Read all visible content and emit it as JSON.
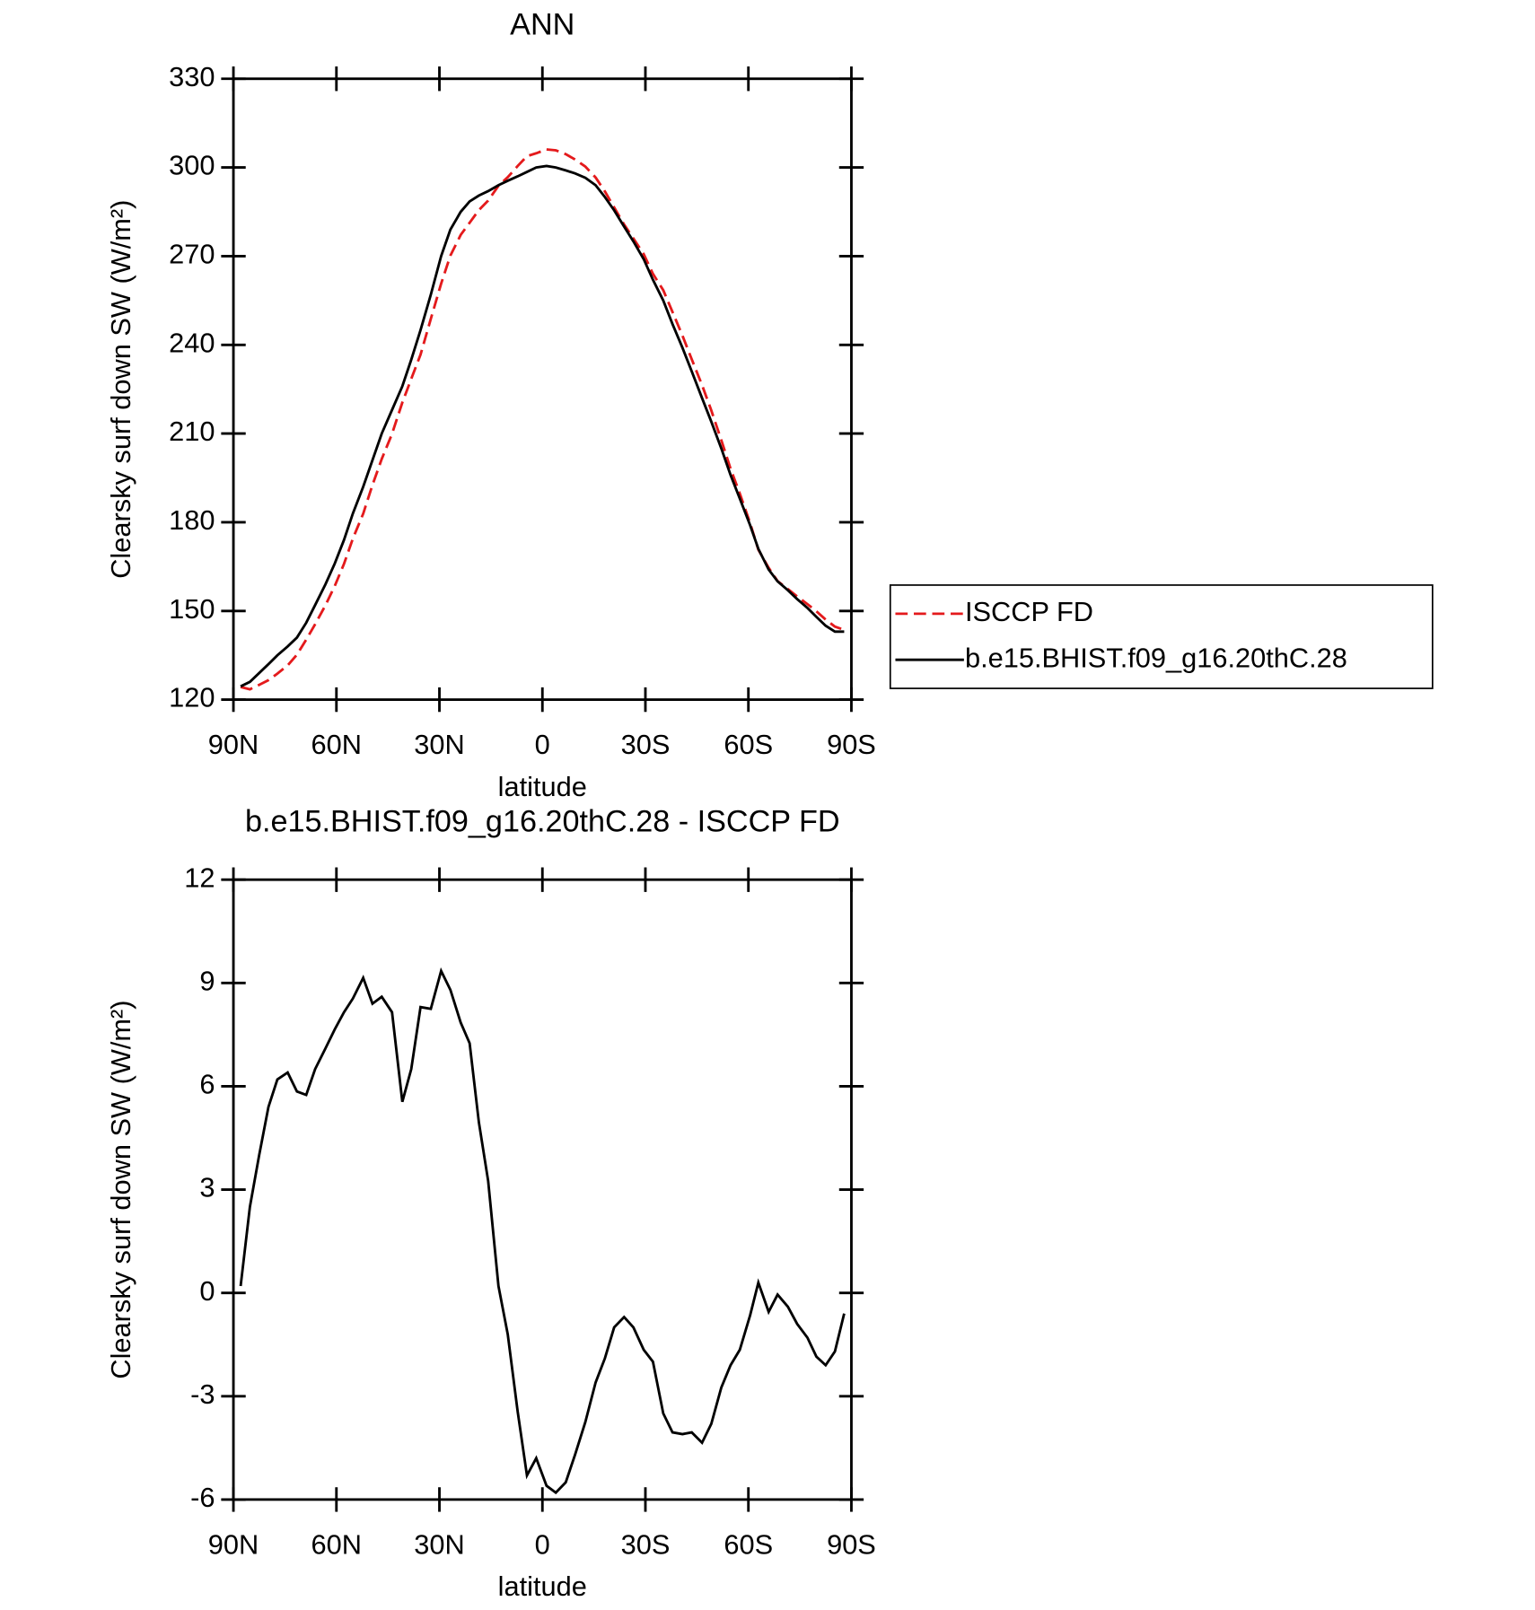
{
  "chart_data": [
    {
      "type": "line",
      "title": "ANN",
      "xlabel": "latitude",
      "ylabel": "Clearsky surf down SW (W/m²)",
      "xlim": [
        90,
        -90
      ],
      "ylim": [
        120,
        330
      ],
      "xticks": [
        {
          "value": 90,
          "label": "90N"
        },
        {
          "value": 60,
          "label": "60N"
        },
        {
          "value": 30,
          "label": "30N"
        },
        0,
        {
          "value": -30,
          "label": "30S"
        },
        {
          "value": -60,
          "label": "60S"
        },
        {
          "value": -90,
          "label": "90S"
        }
      ],
      "yticks": [
        120,
        150,
        180,
        210,
        240,
        270,
        300,
        330
      ],
      "legend": "right",
      "x": [
        87.9,
        85.2,
        82.5,
        79.8,
        77.2,
        74.2,
        71.5,
        68.8,
        66.2,
        63.2,
        60.5,
        57.8,
        55.2,
        52.2,
        49.5,
        46.8,
        43.8,
        40.8,
        38.2,
        35.5,
        32.5,
        29.5,
        26.8,
        23.8,
        21.2,
        18.5,
        15.8,
        12.8,
        10.1,
        7.2,
        4.5,
        1.8,
        -1.2,
        -3.9,
        -6.8,
        -9.5,
        -12.5,
        -15.5,
        -18.2,
        -20.9,
        -23.8,
        -26.5,
        -29.5,
        -32.2,
        -35.2,
        -37.9,
        -40.8,
        -43.5,
        -46.5,
        -49.2,
        -52.1,
        -54.8,
        -57.5,
        -60.5,
        -62.9,
        -65.9,
        -68.5,
        -71.5,
        -74.2,
        -77.2,
        -79.8,
        -82.5,
        -85.2,
        -87.9
      ],
      "series": [
        {
          "name": "ISCCP FD",
          "color": "#e41a1c",
          "linestyle": "dashed",
          "values": [
            124.3,
            123.5,
            125,
            126.6,
            128.8,
            131.6,
            135.2,
            140.3,
            145.5,
            151.9,
            158.4,
            165.9,
            174.5,
            182.9,
            192.6,
            201.4,
            209.9,
            220.5,
            228.5,
            236.7,
            248.8,
            260.7,
            270.2,
            277.2,
            281.3,
            285.6,
            288.8,
            293.8,
            296.7,
            300.5,
            303.8,
            304.8,
            306.1,
            305.8,
            304.5,
            302.7,
            300.3,
            296.6,
            291.9,
            286.5,
            280.7,
            276,
            270.7,
            264,
            258.5,
            251.1,
            243.1,
            235.1,
            226.4,
            217.8,
            207.8,
            198.1,
            189.7,
            179.7,
            170.7,
            164.6,
            160.1,
            157.4,
            154.9,
            152.3,
            149.9,
            147.1,
            144.7,
            143.6
          ]
        },
        {
          "name": "b.e15.BHIST.f09_g16.20thC.28",
          "color": "#000000",
          "linestyle": "solid",
          "values": [
            124.5,
            126,
            129,
            132,
            135,
            138,
            141,
            146,
            152,
            159,
            166,
            174,
            183,
            192,
            201,
            210,
            218,
            226,
            235,
            245,
            257,
            270,
            279,
            285,
            288.5,
            290.5,
            292,
            294,
            295.5,
            297,
            298.5,
            300,
            300.5,
            300,
            299,
            298,
            296.5,
            294,
            290,
            285.5,
            280,
            275,
            269,
            262,
            255,
            247,
            239,
            231,
            222,
            214,
            205,
            196,
            188,
            179,
            171,
            164,
            160,
            157,
            154,
            151,
            148,
            145,
            143,
            143
          ]
        }
      ]
    },
    {
      "type": "line",
      "title": "b.e15.BHIST.f09_g16.20thC.28 - ISCCP FD",
      "xlabel": "latitude",
      "ylabel": "Clearsky surf down SW (W/m²)",
      "xlim": [
        90,
        -90
      ],
      "ylim": [
        -6,
        12
      ],
      "xticks": [
        {
          "value": 90,
          "label": "90N"
        },
        {
          "value": 60,
          "label": "60N"
        },
        {
          "value": 30,
          "label": "30N"
        },
        0,
        {
          "value": -30,
          "label": "30S"
        },
        {
          "value": -60,
          "label": "60S"
        },
        {
          "value": -90,
          "label": "90S"
        }
      ],
      "yticks": [
        -6,
        -3,
        0,
        3,
        6,
        9,
        12
      ],
      "x": [
        87.9,
        85.2,
        82.5,
        79.8,
        77.2,
        74.2,
        71.5,
        68.8,
        66.2,
        63.2,
        60.5,
        57.8,
        55.2,
        52.2,
        49.5,
        46.8,
        43.8,
        40.8,
        38.2,
        35.5,
        32.5,
        29.5,
        26.8,
        23.8,
        21.2,
        18.5,
        15.8,
        12.8,
        10.1,
        7.2,
        4.5,
        1.8,
        -1.2,
        -3.9,
        -6.8,
        -9.5,
        -12.5,
        -15.5,
        -18.2,
        -20.9,
        -23.8,
        -26.5,
        -29.5,
        -32.2,
        -35.2,
        -37.9,
        -40.8,
        -43.5,
        -46.5,
        -49.2,
        -52.1,
        -54.8,
        -57.5,
        -60.5,
        -62.9,
        -65.9,
        -68.5,
        -71.5,
        -74.2,
        -77.2,
        -79.8,
        -82.5,
        -85.2,
        -87.9
      ],
      "series": [
        {
          "color": "#000000",
          "linestyle": "solid",
          "values": [
            0.2,
            2.5,
            4,
            5.4,
            6.2,
            6.4,
            5.85,
            5.75,
            6.5,
            7.1,
            7.65,
            8.15,
            8.55,
            9.15,
            8.4,
            8.6,
            8.15,
            5.55,
            6.5,
            8.3,
            8.25,
            9.35,
            8.8,
            7.85,
            7.25,
            4.95,
            3.25,
            0.2,
            -1.2,
            -3.45,
            -5.3,
            -4.8,
            -5.6,
            -5.8,
            -5.5,
            -4.7,
            -3.75,
            -2.6,
            -1.9,
            -1,
            -0.7,
            -1,
            -1.65,
            -2,
            -3.5,
            -4.05,
            -4.1,
            -4.05,
            -4.35,
            -3.8,
            -2.75,
            -2.1,
            -1.65,
            -0.65,
            0.3,
            -0.55,
            -0.05,
            -0.4,
            -0.9,
            -1.3,
            -1.85,
            -2.1,
            -1.7,
            -0.6
          ]
        }
      ]
    }
  ]
}
